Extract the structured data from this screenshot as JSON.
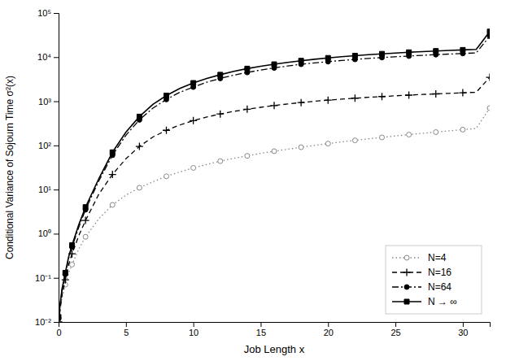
{
  "chart_data": {
    "type": "line",
    "xlabel": "Job Length x",
    "ylabel": "Conditional Variance of Sojourn Time σ²(x)",
    "log": "y",
    "grid": false,
    "legend": "lower right",
    "xlim": [
      0,
      32
    ],
    "ylim": [
      0.01,
      100000
    ],
    "xticks": [
      0,
      5,
      10,
      15,
      20,
      25,
      30
    ],
    "yticks": [
      {
        "value": 0.01,
        "label": "10⁻²"
      },
      {
        "value": 0.1,
        "label": "10⁻¹"
      },
      {
        "value": 1,
        "label": "10⁰"
      },
      {
        "value": 10,
        "label": "10¹"
      },
      {
        "value": 100,
        "label": "10²"
      },
      {
        "value": 1000,
        "label": "10³"
      },
      {
        "value": 10000,
        "label": "10⁴"
      },
      {
        "value": 100000,
        "label": "10⁵"
      }
    ],
    "x": [
      0.0,
      0.25,
      0.5,
      0.75,
      1.0,
      1.5,
      2.0,
      3.0,
      4.0,
      5.0,
      6.0,
      7.0,
      8.0,
      9.0,
      10.0,
      11.0,
      12.0,
      13.0,
      14.0,
      15.0,
      16.0,
      17.0,
      18.0,
      19.0,
      20.0,
      21.0,
      22.0,
      23.0,
      24.0,
      25.0,
      26.0,
      27.0,
      28.0,
      29.0,
      30.0,
      31.0,
      32.0
    ],
    "series": [
      {
        "name": "N=4",
        "color": "#888888",
        "marker": "circle-open",
        "line_style": "dotted",
        "values": [
          0.01,
          0.035,
          0.07,
          0.13,
          0.2,
          0.45,
          0.85,
          2.2,
          4.5,
          7.5,
          11.0,
          15.0,
          20.0,
          25.0,
          31.0,
          37.0,
          44.0,
          51.0,
          58.0,
          66.0,
          74.0,
          82.0,
          91.0,
          100.0,
          110.0,
          120.0,
          130.0,
          141.0,
          152.0,
          164.0,
          176.0,
          188.0,
          200.0,
          214.0,
          228.0,
          242.0,
          700.0
        ]
      },
      {
        "name": "N=16",
        "color": "black",
        "marker": "plus",
        "line_style": "dashed",
        "values": [
          0.01,
          0.04,
          0.09,
          0.2,
          0.35,
          0.9,
          2.0,
          8.0,
          22.0,
          50.0,
          95.0,
          155.0,
          220.0,
          290.0,
          365.0,
          440.0,
          515.0,
          590.0,
          660.0,
          730.0,
          800.0,
          870.0,
          935.0,
          1000.0,
          1060.0,
          1120.0,
          1175.0,
          1230.0,
          1280.0,
          1330.0,
          1380.0,
          1425.0,
          1470.0,
          1515.0,
          1560.0,
          1600.0,
          3500.0
        ]
      },
      {
        "name": "N=64",
        "color": "black",
        "marker": "circle",
        "line_style": "dashdot",
        "values": [
          0.012,
          0.05,
          0.12,
          0.28,
          0.5,
          1.4,
          3.5,
          16.0,
          60.0,
          170.0,
          380.0,
          700.0,
          1100.0,
          1600.0,
          2100.0,
          2700.0,
          3300.0,
          3900.0,
          4500.0,
          5100.0,
          5700.0,
          6300.0,
          6900.0,
          7400.0,
          7900.0,
          8400.0,
          8900.0,
          9350.0,
          9800.0,
          10200.0,
          10600.0,
          11000.0,
          11400.0,
          11750.0,
          12100.0,
          12450.0,
          30000.0
        ]
      },
      {
        "name": "N → ∞",
        "color": "black",
        "marker": "square",
        "line_style": "solid",
        "values": [
          0.013,
          0.055,
          0.13,
          0.3,
          0.55,
          1.6,
          4.0,
          18.0,
          70.0,
          200.0,
          450.0,
          850.0,
          1350.0,
          1950.0,
          2600.0,
          3300.0,
          4000.0,
          4750.0,
          5500.0,
          6200.0,
          6900.0,
          7600.0,
          8300.0,
          8950.0,
          9600.0,
          10200.0,
          10800.0,
          11350.0,
          11900.0,
          12400.0,
          12900.0,
          13350.0,
          13800.0,
          14200.0,
          14600.0,
          15000.0,
          38000.0
        ]
      }
    ]
  }
}
